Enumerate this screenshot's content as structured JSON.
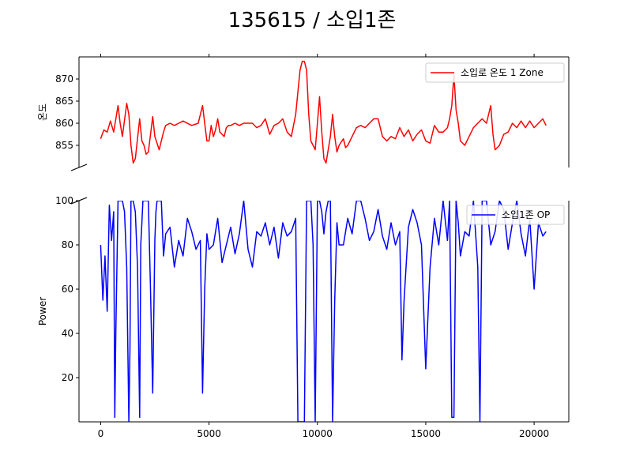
{
  "chart_data": {
    "title": "135615    /    소입1존",
    "x_ticks": [
      0,
      5000,
      10000,
      15000,
      20000
    ],
    "xlim": [
      -1000,
      21600
    ],
    "panels": [
      {
        "type": "line",
        "ylabel": "온도",
        "ylim": [
          850,
          875
        ],
        "y_ticks": [
          855,
          860,
          865,
          870
        ],
        "legend_position": "top-right",
        "series": [
          {
            "name": "소입로 온도 1 Zone",
            "color": "#ff0000",
            "x": [
              0,
              150,
              300,
              450,
              600,
              800,
              900,
              1000,
              1200,
              1300,
              1400,
              1500,
              1600,
              1800,
              1900,
              2000,
              2100,
              2200,
              2400,
              2500,
              2700,
              2800,
              2900,
              3000,
              3200,
              3400,
              3600,
              3800,
              4200,
              4500,
              4700,
              4800,
              4900,
              5000,
              5100,
              5200,
              5300,
              5400,
              5500,
              5600,
              5700,
              5800,
              5900,
              6000,
              6200,
              6400,
              6600,
              6800,
              7000,
              7200,
              7400,
              7600,
              7800,
              8000,
              8200,
              8400,
              8600,
              8800,
              9000,
              9200,
              9300,
              9400,
              9500,
              9600,
              9700,
              9800,
              9900,
              10000,
              10100,
              10200,
              10300,
              10400,
              10600,
              10700,
              10800,
              10900,
              11000,
              11200,
              11300,
              11400,
              11600,
              11800,
              12000,
              12200,
              12400,
              12600,
              12800,
              13000,
              13200,
              13400,
              13600,
              13800,
              14000,
              14200,
              14400,
              14600,
              14800,
              15000,
              15200,
              15400,
              15600,
              15800,
              16000,
              16100,
              16200,
              16300,
              16400,
              16500,
              16600,
              16800,
              17000,
              17200,
              17400,
              17600,
              17800,
              18000,
              18100,
              18200,
              18400,
              18600,
              18800,
              19000,
              19200,
              19400,
              19600,
              19800,
              20000,
              20200,
              20400,
              20550
            ],
            "y": [
              856.5,
              858.5,
              858,
              860.5,
              858,
              864,
              860,
              857,
              864.5,
              862,
              855,
              851,
              852,
              861,
              856,
              855,
              853,
              853.5,
              861.5,
              857,
              854,
              856,
              858,
              859.5,
              860,
              859.5,
              860,
              860.5,
              859.5,
              860,
              864,
              860,
              856,
              856,
              859.5,
              857,
              858.5,
              861,
              858,
              857.5,
              857,
              859,
              859.5,
              859.5,
              860,
              859.5,
              860,
              860,
              860,
              859,
              859.5,
              861,
              857.5,
              859.5,
              860,
              861,
              858,
              857,
              862,
              872,
              874,
              874,
              872,
              862,
              856,
              855,
              854,
              860,
              866,
              858,
              852,
              851,
              857,
              862,
              857,
              853.5,
              855,
              856.5,
              854.5,
              855,
              857,
              859,
              859.5,
              859,
              860,
              861,
              861,
              857,
              856,
              857,
              856.5,
              859,
              857,
              858.5,
              856,
              857.5,
              858.5,
              856,
              855.5,
              859.5,
              858,
              858,
              859,
              861,
              864,
              871,
              863,
              860,
              856,
              855,
              857,
              859,
              860,
              861,
              860,
              864,
              857.5,
              854,
              855,
              857.5,
              858,
              860,
              859,
              860.5,
              859,
              860.5,
              859,
              860,
              861,
              859.5
            ]
          }
        ]
      },
      {
        "type": "line",
        "ylabel": "Power",
        "ylim": [
          0,
          100
        ],
        "y_ticks": [
          20,
          40,
          60,
          80,
          100
        ],
        "legend_position": "top-right",
        "series": [
          {
            "name": "소입1존 OP",
            "color": "#0000ff",
            "x": [
              0,
              100,
              200,
              300,
              400,
              500,
              600,
              650,
              700,
              750,
              800,
              900,
              1000,
              1100,
              1200,
              1300,
              1350,
              1400,
              1450,
              1500,
              1600,
              1700,
              1800,
              1850,
              1900,
              1950,
              2000,
              2100,
              2200,
              2300,
              2400,
              2500,
              2550,
              2600,
              2700,
              2800,
              2900,
              3000,
              3200,
              3400,
              3600,
              3800,
              4000,
              4200,
              4400,
              4600,
              4700,
              4800,
              4900,
              5000,
              5200,
              5400,
              5600,
              5800,
              6000,
              6200,
              6400,
              6600,
              6800,
              7000,
              7200,
              7400,
              7600,
              7800,
              8000,
              8200,
              8400,
              8600,
              8800,
              9000,
              9100,
              9200,
              9300,
              9400,
              9500,
              9600,
              9700,
              9800,
              9900,
              10000,
              10100,
              10200,
              10300,
              10400,
              10500,
              10600,
              10700,
              10800,
              10900,
              11000,
              11200,
              11400,
              11600,
              11800,
              12000,
              12200,
              12400,
              12600,
              12800,
              13000,
              13200,
              13400,
              13600,
              13800,
              13900,
              14000,
              14200,
              14400,
              14600,
              14800,
              15000,
              15200,
              15400,
              15600,
              15800,
              16000,
              16100,
              16200,
              16300,
              16400,
              16500,
              16600,
              16800,
              17000,
              17200,
              17400,
              17500,
              17600,
              17800,
              18000,
              18200,
              18400,
              18600,
              18800,
              19000,
              19200,
              19400,
              19600,
              19800,
              20000,
              20200,
              20400,
              20550
            ],
            "y": [
              80,
              55,
              75,
              50,
              98,
              82,
              95,
              2,
              40,
              70,
              100,
              100,
              100,
              95,
              70,
              0,
              33,
              100,
              100,
              100,
              95,
              70,
              2,
              80,
              90,
              100,
              100,
              100,
              100,
              60,
              13,
              82,
              95,
              100,
              100,
              100,
              75,
              85,
              88,
              70,
              82,
              75,
              92,
              86,
              78,
              82,
              13,
              60,
              85,
              78,
              80,
              92,
              72,
              80,
              88,
              76,
              85,
              100,
              78,
              70,
              86,
              84,
              90,
              80,
              88,
              74,
              90,
              84,
              86,
              92,
              0,
              0,
              0,
              0,
              100,
              100,
              100,
              80,
              0,
              100,
              100,
              95,
              85,
              95,
              100,
              100,
              0,
              55,
              90,
              80,
              80,
              92,
              85,
              100,
              100,
              92,
              82,
              86,
              96,
              84,
              78,
              90,
              80,
              86,
              28,
              55,
              88,
              96,
              90,
              80,
              24,
              70,
              92,
              80,
              100,
              82,
              100,
              2,
              2,
              100,
              90,
              75,
              86,
              84,
              100,
              70,
              0,
              100,
              100,
              80,
              86,
              100,
              96,
              78,
              90,
              100,
              85,
              75,
              92,
              60,
              90,
              84,
              86
            ]
          }
        ]
      }
    ]
  }
}
